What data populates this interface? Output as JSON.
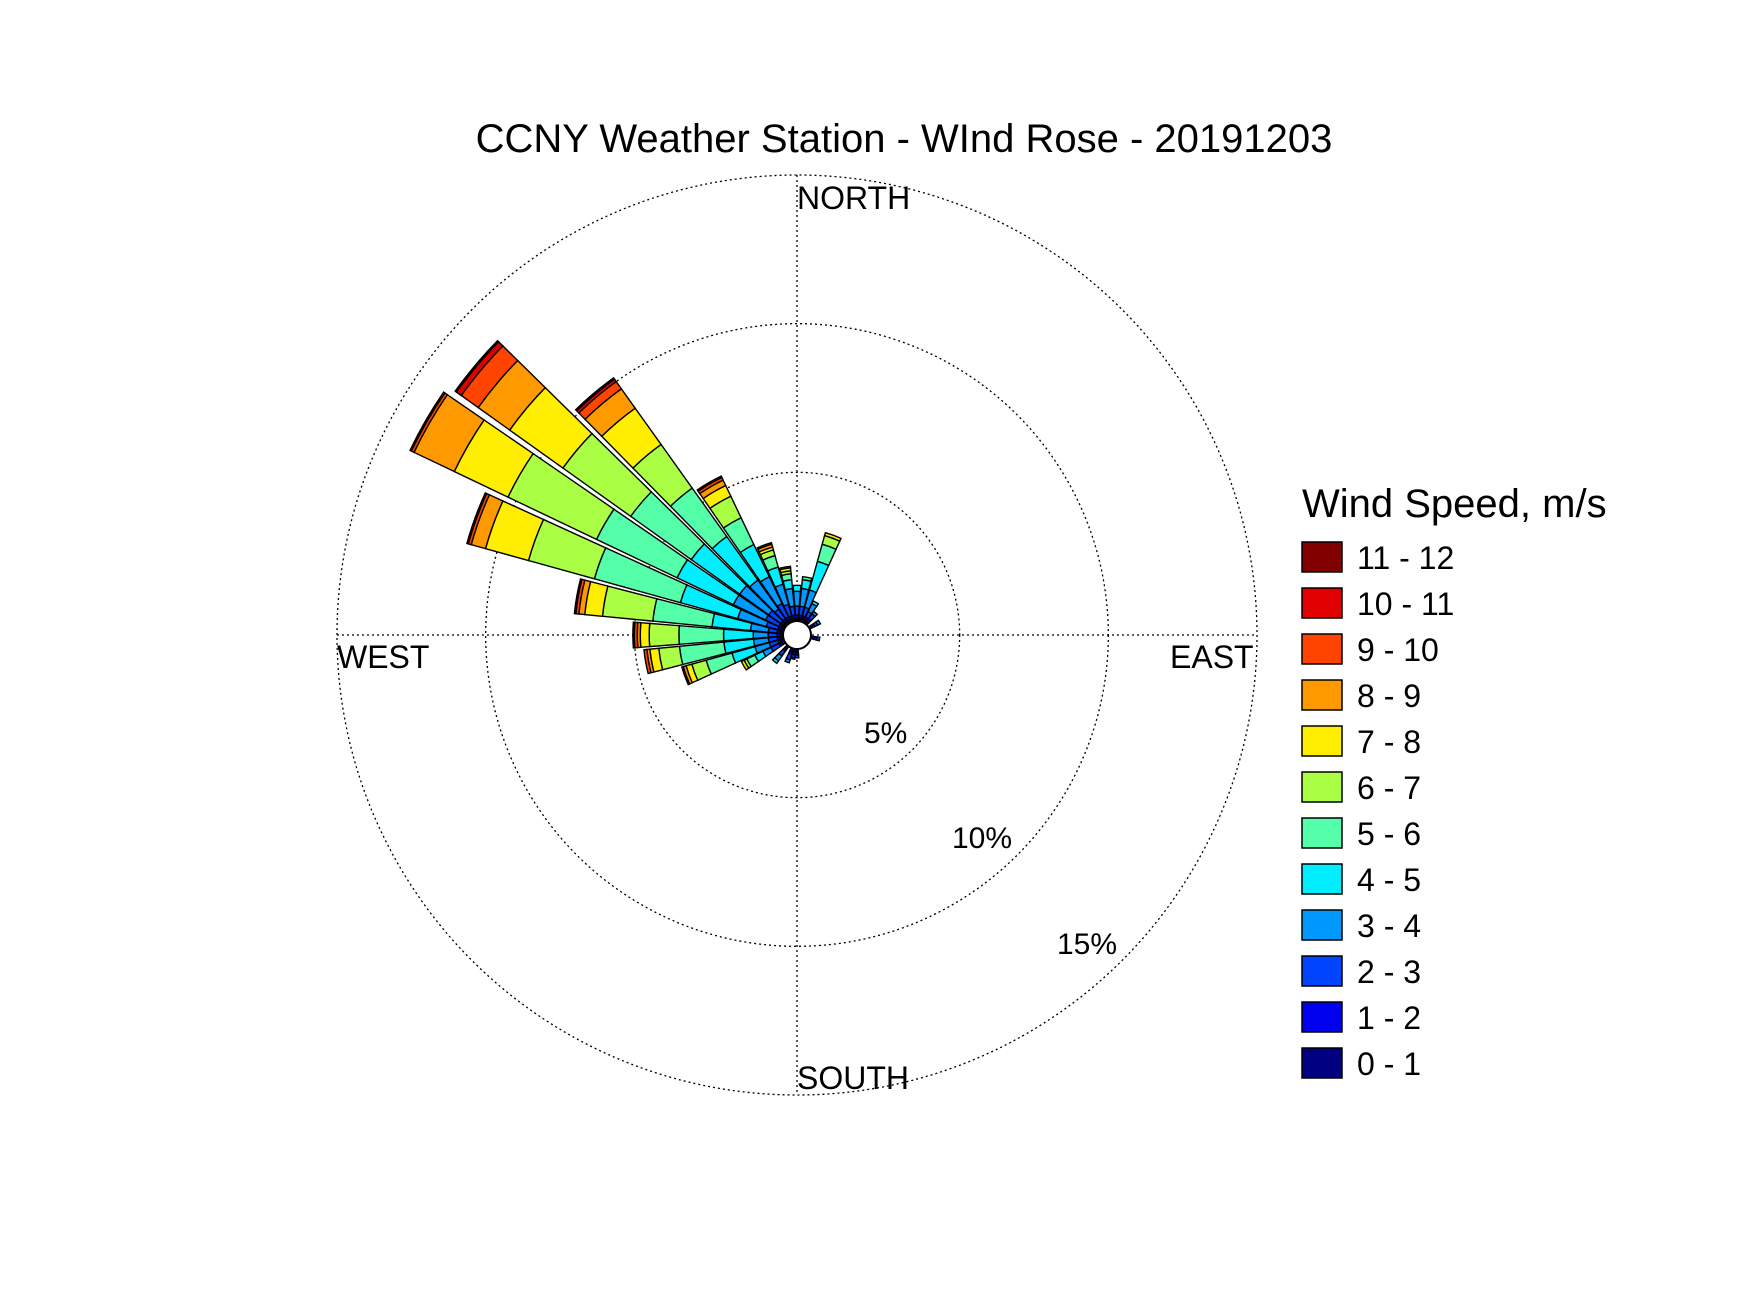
{
  "chart_data": {
    "type": "wind-rose",
    "title": "CCNY Weather Station - WInd Rose - 20191203",
    "directions": {
      "north": "NORTH",
      "east": "EAST",
      "south": "SOUTH",
      "west": "WEST"
    },
    "ring_labels": [
      "5%",
      "10%",
      "15%"
    ],
    "rings": [
      5,
      10,
      15
    ],
    "rmax": 15,
    "grid": true,
    "legend": {
      "title": "Wind Speed, m/s",
      "position": "right",
      "bins": [
        {
          "label": "11 - 12",
          "color": "#800000"
        },
        {
          "label": "10 - 11",
          "color": "#e00000"
        },
        {
          "label": "9 - 10",
          "color": "#ff4400"
        },
        {
          "label": "8 - 9",
          "color": "#ff9900"
        },
        {
          "label": "7 - 8",
          "color": "#ffee00"
        },
        {
          "label": "6 - 7",
          "color": "#aaff44"
        },
        {
          "label": "5 - 6",
          "color": "#55ffaa"
        },
        {
          "label": "4 - 5",
          "color": "#00eeff"
        },
        {
          "label": "3 - 4",
          "color": "#0099ff"
        },
        {
          "label": "2 - 3",
          "color": "#0044ff"
        },
        {
          "label": "1 - 2",
          "color": "#0000ee"
        },
        {
          "label": "0 - 1",
          "color": "#000080"
        }
      ]
    },
    "sector_width_deg": 10,
    "series_order": [
      "0 - 1",
      "1 - 2",
      "2 - 3",
      "3 - 4",
      "4 - 5",
      "5 - 6",
      "6 - 7",
      "7 - 8",
      "8 - 9",
      "9 - 10",
      "10 - 11",
      "11 - 12"
    ],
    "sectors": [
      {
        "dir": 180,
        "values": [
          0.1,
          0.1,
          0.1,
          0.0,
          0.0,
          0.0,
          0,
          0,
          0,
          0,
          0,
          0
        ]
      },
      {
        "dir": 190,
        "values": [
          0.1,
          0.1,
          0.1,
          0.05,
          0.0,
          0.0,
          0,
          0,
          0,
          0,
          0,
          0
        ]
      },
      {
        "dir": 200,
        "values": [
          0.1,
          0.1,
          0.2,
          0.1,
          0.0,
          0.0,
          0,
          0,
          0,
          0,
          0,
          0
        ]
      },
      {
        "dir": 220,
        "values": [
          0.1,
          0.1,
          0.2,
          0.2,
          0.1,
          0.0,
          0,
          0,
          0,
          0,
          0,
          0
        ]
      },
      {
        "dir": 240,
        "values": [
          0.1,
          0.1,
          0.3,
          0.3,
          0.3,
          0.3,
          0.1,
          0.1,
          0,
          0,
          0,
          0
        ]
      },
      {
        "dir": 250,
        "values": [
          0.1,
          0.1,
          0.3,
          0.5,
          0.8,
          0.9,
          0.5,
          0.2,
          0.1,
          0.05,
          0,
          0
        ]
      },
      {
        "dir": 260,
        "values": [
          0.1,
          0.1,
          0.3,
          0.5,
          1.0,
          1.5,
          0.7,
          0.3,
          0.1,
          0.1,
          0,
          0
        ]
      },
      {
        "dir": 270,
        "values": [
          0.1,
          0.1,
          0.3,
          0.5,
          1.0,
          1.5,
          1.0,
          0.3,
          0.1,
          0.1,
          0.05,
          0
        ]
      },
      {
        "dir": 280,
        "values": [
          0.1,
          0.1,
          0.3,
          0.6,
          1.3,
          2.0,
          1.7,
          0.6,
          0.2,
          0.1,
          0.05,
          0
        ]
      },
      {
        "dir": 290,
        "values": [
          0.1,
          0.1,
          0.4,
          1.0,
          2.0,
          3.0,
          2.3,
          1.5,
          0.5,
          0.1,
          0.05,
          0
        ]
      },
      {
        "dir": 300,
        "values": [
          0.1,
          0.1,
          0.5,
          1.2,
          2.1,
          3.0,
          3.3,
          2.0,
          1.5,
          0.1,
          0.05,
          0
        ]
      },
      {
        "dir": 310,
        "values": [
          0.1,
          0.1,
          0.5,
          1.2,
          2.0,
          2.5,
          2.8,
          2.2,
          1.3,
          0.7,
          0.2,
          0.05
        ]
      },
      {
        "dir": 320,
        "values": [
          0.1,
          0.1,
          0.4,
          1.2,
          1.8,
          2.0,
          1.8,
          1.5,
          0.8,
          0.3,
          0.1,
          0.05
        ]
      },
      {
        "dir": 330,
        "values": [
          0.1,
          0.1,
          0.5,
          1.0,
          1.2,
          1.0,
          0.8,
          0.4,
          0.2,
          0.1,
          0.05,
          0
        ]
      },
      {
        "dir": 340,
        "values": [
          0.1,
          0.1,
          0.4,
          0.7,
          0.6,
          0.4,
          0.2,
          0.1,
          0.1,
          0.05,
          0,
          0
        ]
      },
      {
        "dir": 350,
        "values": [
          0.1,
          0.1,
          0.3,
          0.6,
          0.3,
          0.2,
          0.1,
          0.1,
          0.05,
          0,
          0,
          0
        ]
      },
      {
        "dir": 0,
        "values": [
          0.1,
          0.1,
          0.3,
          0.5,
          0.2,
          0.0,
          0,
          0,
          0,
          0,
          0,
          0
        ]
      },
      {
        "dir": 10,
        "values": [
          0.1,
          0.1,
          0.3,
          0.6,
          0.3,
          0.1,
          0,
          0,
          0,
          0,
          0,
          0
        ]
      },
      {
        "dir": 20,
        "values": [
          0.1,
          0.1,
          0.3,
          0.6,
          1.0,
          0.6,
          0.3,
          0.1,
          0,
          0,
          0,
          0
        ]
      },
      {
        "dir": 30,
        "values": [
          0.1,
          0.1,
          0.2,
          0.3,
          0.1,
          0.0,
          0,
          0,
          0,
          0,
          0,
          0
        ]
      },
      {
        "dir": 40,
        "values": [
          0.1,
          0.1,
          0.2,
          0.1,
          0.0,
          0.0,
          0,
          0,
          0,
          0,
          0,
          0
        ]
      },
      {
        "dir": 60,
        "values": [
          0.1,
          0.1,
          0.1,
          0.1,
          0.0,
          0.0,
          0,
          0,
          0,
          0,
          0,
          0
        ]
      },
      {
        "dir": 100,
        "values": [
          0.1,
          0.1,
          0.1,
          0.0,
          0.0,
          0.0,
          0,
          0,
          0,
          0,
          0,
          0
        ]
      }
    ]
  }
}
